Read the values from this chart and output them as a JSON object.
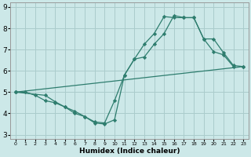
{
  "background_color": "#cce8e8",
  "grid_color": "#aacccc",
  "line_color": "#2e7d6e",
  "marker_color": "#2e7d6e",
  "xlabel": "Humidex (Indice chaleur)",
  "xlim": [
    -0.5,
    23.5
  ],
  "ylim": [
    2.8,
    9.2
  ],
  "yticks": [
    3,
    4,
    5,
    6,
    7,
    8,
    9
  ],
  "xticks": [
    0,
    1,
    2,
    3,
    4,
    5,
    6,
    7,
    8,
    9,
    10,
    11,
    12,
    13,
    14,
    15,
    16,
    17,
    18,
    19,
    20,
    21,
    22,
    23
  ],
  "line1_x": [
    0,
    1,
    2,
    3,
    4,
    5,
    6,
    7,
    8,
    9,
    10,
    11,
    12,
    13,
    14,
    15,
    16,
    17,
    18,
    19,
    20,
    21,
    22
  ],
  "line1_y": [
    5.0,
    5.0,
    4.85,
    4.6,
    4.5,
    4.3,
    4.1,
    3.85,
    3.6,
    3.55,
    4.6,
    5.8,
    6.55,
    6.65,
    7.25,
    7.75,
    8.6,
    8.5,
    8.5,
    7.5,
    6.9,
    6.75,
    6.2
  ],
  "line2_x": [
    0,
    3,
    4,
    5,
    6,
    7,
    8,
    9,
    10,
    11,
    12,
    13,
    14,
    15,
    16,
    17,
    18,
    19,
    20,
    21,
    22,
    23
  ],
  "line2_y": [
    5.0,
    4.85,
    4.55,
    4.3,
    4.0,
    3.85,
    3.55,
    3.5,
    3.7,
    5.8,
    6.55,
    7.25,
    7.75,
    8.55,
    8.5,
    8.5,
    8.5,
    7.5,
    7.5,
    6.85,
    6.25,
    6.2
  ],
  "line3_x": [
    0,
    23
  ],
  "line3_y": [
    5.0,
    6.2
  ]
}
